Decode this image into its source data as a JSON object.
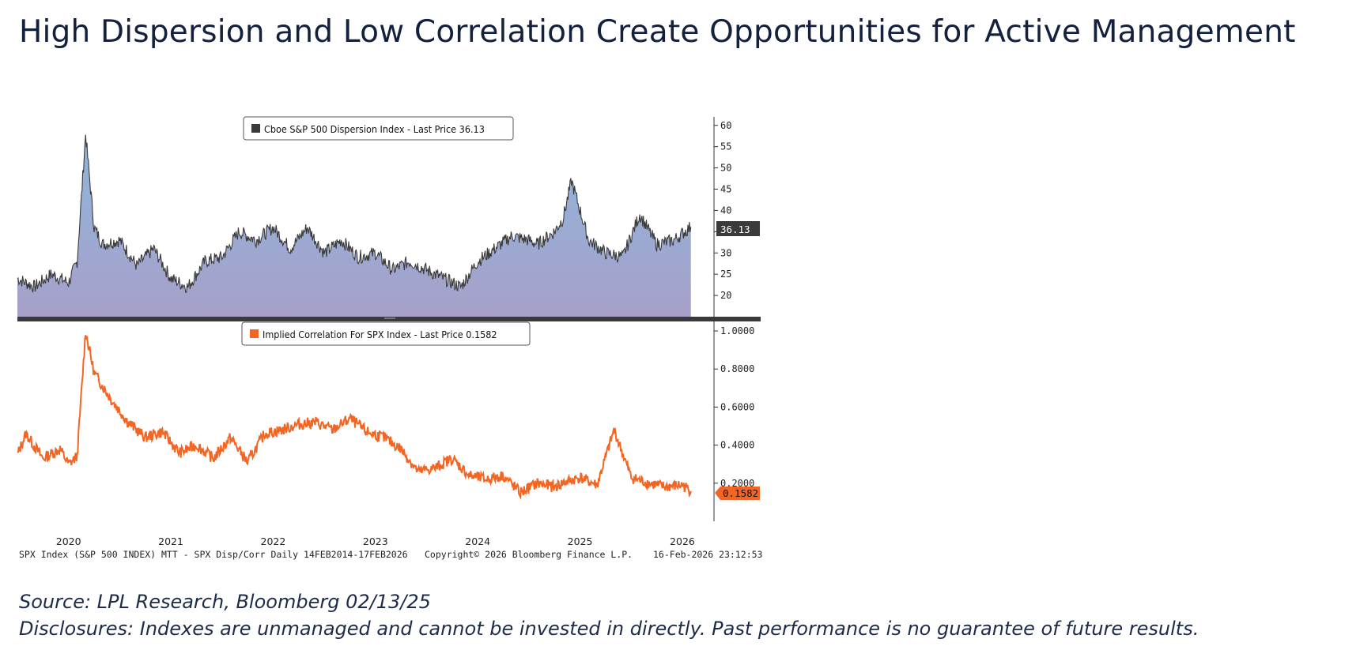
{
  "title": "High Dispersion and Low Correlation Create Opportunities for Active Management",
  "footer": {
    "source": "Source: LPL Research, Bloomberg 02/13/25",
    "disclosures": "Disclosures: Indexes are unmanaged and cannot be invested in directly. Past performance is no guarantee of future results."
  },
  "bloomberg": {
    "left": "SPX Index (S&P 500 INDEX) MTT - SPX Disp/Corr Daily 14FEB2014-17FEB2026",
    "center": "Copyright© 2026 Bloomberg Finance L.P.",
    "right": "16-Feb-2026 23:12:53"
  },
  "colors": {
    "title": "#14213d",
    "dispersion_line": "#3a3a3a",
    "dispersion_fill_top": "#8fb6dc",
    "dispersion_fill_bottom": "#a6a0c9",
    "correlation_line": "#f26522",
    "last_price_box_dispersion": "#3a3a3a",
    "last_price_box_correlation": "#f26522"
  },
  "chart_data": [
    {
      "type": "area",
      "legend": "Cboe S&P 500 Dispersion Index - Last Price 36.13",
      "last_price_label": "36.13",
      "last_price": 36.13,
      "ylim": [
        15,
        62
      ],
      "y_ticks": [
        "60",
        "55",
        "50",
        "45",
        "40",
        "35",
        "30",
        "25",
        "20"
      ],
      "y_tick_values": [
        60,
        55,
        50,
        45,
        40,
        35,
        30,
        25,
        20
      ],
      "x_ticks": [
        "2020",
        "2021",
        "2022",
        "2023",
        "2024",
        "2025",
        "2026"
      ],
      "xlim": [
        "2019-07-01",
        "2026-02-13"
      ],
      "axis_side": "right",
      "legend_position": "top-center",
      "series": [
        {
          "name": "Cboe S&P 500 Dispersion Index",
          "x": [
            "2019-07",
            "2019-09",
            "2019-11",
            "2020-01",
            "2020-02",
            "2020-03",
            "2020-04",
            "2020-05",
            "2020-07",
            "2020-09",
            "2020-11",
            "2021-01",
            "2021-03",
            "2021-05",
            "2021-07",
            "2021-09",
            "2021-11",
            "2022-01",
            "2022-03",
            "2022-05",
            "2022-07",
            "2022-09",
            "2022-11",
            "2023-01",
            "2023-03",
            "2023-05",
            "2023-07",
            "2023-09",
            "2023-11",
            "2024-01",
            "2024-03",
            "2024-05",
            "2024-07",
            "2024-08",
            "2024-10",
            "2024-11",
            "2024-12",
            "2025-02",
            "2025-04",
            "2025-06",
            "2025-08",
            "2025-10",
            "2025-12",
            "2026-02"
          ],
          "y": [
            24,
            22,
            25,
            23,
            28,
            58,
            36,
            32,
            33,
            27,
            31,
            24,
            22,
            28,
            29,
            35,
            33,
            36,
            31,
            36,
            30,
            33,
            29,
            30,
            26,
            28,
            26,
            24,
            22,
            28,
            31,
            34,
            33,
            32,
            35,
            38,
            47,
            33,
            30,
            29,
            39,
            32,
            33,
            36.13
          ]
        }
      ]
    },
    {
      "type": "line",
      "legend": "Implied Correlation For SPX Index - Last Price 0.1582",
      "last_price_label": "0.1582",
      "last_price": 0.1582,
      "ylim": [
        0.0,
        1.05
      ],
      "y_ticks": [
        "1.0000",
        "0.8000",
        "0.6000",
        "0.4000",
        "0.2000"
      ],
      "y_tick_values": [
        1.0,
        0.8,
        0.6,
        0.4,
        0.2
      ],
      "x_ticks": [
        "2020",
        "2021",
        "2022",
        "2023",
        "2024",
        "2025",
        "2026"
      ],
      "xlim": [
        "2019-07-01",
        "2026-02-13"
      ],
      "axis_side": "right",
      "legend_position": "top-center",
      "series": [
        {
          "name": "Implied Correlation For SPX Index",
          "x": [
            "2019-07",
            "2019-08",
            "2019-10",
            "2019-12",
            "2020-01",
            "2020-02",
            "2020-03",
            "2020-04",
            "2020-06",
            "2020-08",
            "2020-10",
            "2020-12",
            "2021-02",
            "2021-04",
            "2021-06",
            "2021-08",
            "2021-10",
            "2021-12",
            "2022-02",
            "2022-04",
            "2022-06",
            "2022-08",
            "2022-10",
            "2022-12",
            "2023-02",
            "2023-04",
            "2023-06",
            "2023-08",
            "2023-10",
            "2023-12",
            "2024-02",
            "2024-04",
            "2024-06",
            "2024-08",
            "2024-10",
            "2024-11",
            "2025-01",
            "2025-03",
            "2025-05",
            "2025-07",
            "2025-09",
            "2025-11",
            "2026-01",
            "2026-02"
          ],
          "y": [
            0.35,
            0.46,
            0.33,
            0.38,
            0.3,
            0.34,
            1.0,
            0.78,
            0.64,
            0.52,
            0.44,
            0.47,
            0.36,
            0.4,
            0.33,
            0.44,
            0.31,
            0.46,
            0.48,
            0.51,
            0.52,
            0.48,
            0.54,
            0.47,
            0.44,
            0.38,
            0.26,
            0.28,
            0.33,
            0.24,
            0.22,
            0.24,
            0.15,
            0.2,
            0.18,
            0.2,
            0.23,
            0.19,
            0.48,
            0.23,
            0.2,
            0.18,
            0.19,
            0.1582
          ]
        }
      ]
    }
  ]
}
